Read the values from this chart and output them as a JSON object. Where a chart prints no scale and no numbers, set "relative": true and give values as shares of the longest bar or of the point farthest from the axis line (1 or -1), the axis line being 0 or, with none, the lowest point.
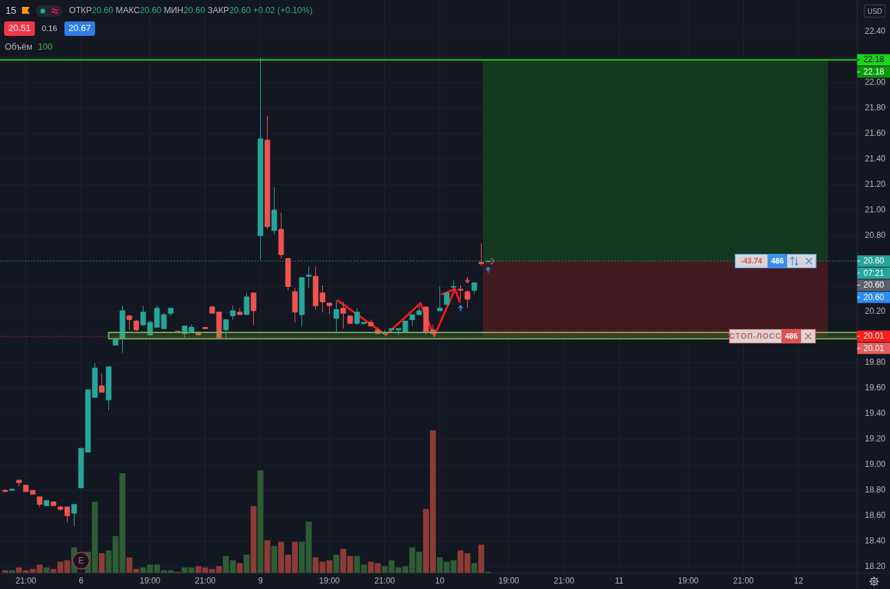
{
  "chart_data": [
    {
      "type": "candlestick",
      "title": "15",
      "subtitle": "ОТКР20.60 МАКС20.60 МИН20.60 ЗАКР20.60 +0.02 (+0.10%)",
      "categories": [
        null,
        null,
        null,
        "21:00",
        null,
        null,
        null,
        null,
        null,
        null,
        null,
        "6",
        null,
        null,
        null,
        null,
        null,
        null,
        null,
        null,
        null,
        "19:00",
        null,
        null,
        null,
        null,
        null,
        null,
        null,
        "21:00",
        null,
        null,
        null,
        null,
        null,
        null,
        null,
        "9",
        null,
        null,
        null,
        null,
        null,
        null,
        null,
        null,
        null,
        "19:00",
        null,
        null,
        null,
        null,
        null,
        null,
        null,
        "21:00",
        null,
        null,
        null,
        null,
        null,
        null,
        null,
        "10",
        null,
        null,
        null,
        null,
        null,
        null,
        null,
        null,
        null,
        "19:00",
        null,
        null,
        null,
        null,
        null,
        null,
        null,
        "21:00",
        null,
        null,
        null,
        null,
        null,
        null,
        null,
        "11",
        null,
        null,
        null,
        null,
        null,
        null,
        null,
        null,
        null,
        "19:00",
        null,
        null,
        null,
        null,
        null,
        null,
        null,
        "21:00",
        null,
        null,
        null,
        null,
        null,
        null,
        null,
        "12",
        null,
        null,
        null,
        null,
        null,
        null,
        null,
        null
      ],
      "ohlc": [
        [
          18.8,
          18.81,
          18.79,
          18.79
        ],
        [
          18.8,
          18.81,
          18.8,
          18.81
        ],
        [
          18.88,
          18.88,
          18.83,
          18.86
        ],
        [
          18.84,
          18.84,
          18.79,
          18.79
        ],
        [
          18.8,
          18.8,
          18.77,
          18.77
        ],
        [
          18.75,
          18.75,
          18.67,
          18.69
        ],
        [
          18.68,
          18.72,
          18.68,
          18.72
        ],
        [
          18.71,
          18.71,
          18.68,
          18.68
        ],
        [
          18.67,
          18.68,
          18.64,
          18.65
        ],
        [
          18.67,
          18.67,
          18.55,
          18.6
        ],
        [
          18.62,
          18.69,
          18.52,
          18.69
        ],
        [
          18.82,
          19.13,
          18.82,
          19.13
        ],
        [
          19.1,
          19.59,
          19.1,
          19.59
        ],
        [
          19.53,
          19.8,
          19.53,
          19.76
        ],
        [
          19.62,
          19.72,
          19.57,
          19.57
        ],
        [
          19.51,
          19.77,
          19.43,
          19.77
        ],
        [
          19.94,
          20.0,
          19.94,
          19.99
        ],
        [
          19.99,
          20.25,
          19.88,
          20.21
        ],
        [
          20.17,
          20.18,
          20.06,
          20.14
        ],
        [
          20.13,
          20.14,
          20.05,
          20.06
        ],
        [
          20.1,
          20.25,
          20.09,
          20.2
        ],
        [
          20.02,
          20.13,
          20.02,
          20.12
        ],
        [
          20.08,
          20.25,
          20.08,
          20.23
        ],
        [
          20.07,
          20.19,
          20.07,
          20.18
        ],
        [
          20.19,
          20.23,
          20.17,
          20.23
        ],
        [
          20.05,
          20.05,
          20.04,
          20.04
        ],
        [
          20.03,
          20.09,
          20.0,
          20.09
        ],
        [
          20.04,
          20.1,
          20.04,
          20.08
        ],
        [
          20.04,
          20.05,
          20.02,
          20.02
        ],
        [
          20.08,
          20.08,
          20.07,
          20.07
        ],
        [
          20.24,
          20.25,
          20.19,
          20.19
        ],
        [
          20.2,
          20.2,
          20.0,
          20.0
        ],
        [
          20.06,
          20.14,
          20.0,
          20.14
        ],
        [
          20.17,
          20.25,
          20.14,
          20.21
        ],
        [
          20.2,
          20.23,
          20.18,
          20.18
        ],
        [
          20.18,
          20.35,
          20.18,
          20.32
        ],
        [
          20.35,
          20.35,
          20.1,
          20.21
        ],
        [
          20.8,
          22.2,
          20.61,
          21.56
        ],
        [
          21.55,
          21.74,
          20.85,
          20.87
        ],
        [
          20.84,
          21.18,
          20.81,
          21.0
        ],
        [
          20.85,
          20.98,
          20.62,
          20.65
        ],
        [
          20.62,
          20.62,
          20.37,
          20.4
        ],
        [
          20.36,
          20.39,
          20.12,
          20.2
        ],
        [
          20.18,
          20.47,
          20.09,
          20.47
        ],
        [
          20.48,
          20.56,
          20.39,
          20.49
        ],
        [
          20.48,
          20.56,
          20.22,
          20.25
        ],
        [
          20.35,
          20.41,
          20.2,
          20.28
        ],
        [
          20.27,
          20.28,
          20.18,
          20.25
        ],
        [
          20.15,
          20.29,
          20.04,
          20.22
        ],
        [
          20.23,
          20.28,
          20.07,
          20.19
        ],
        [
          20.17,
          20.17,
          20.11,
          20.11
        ],
        [
          20.11,
          20.23,
          20.1,
          20.2
        ],
        [
          20.11,
          20.12,
          20.1,
          20.12
        ],
        [
          20.12,
          20.14,
          20.09,
          20.09
        ],
        [
          20.06,
          20.08,
          20.03,
          20.03
        ],
        [
          20.03,
          20.06,
          20.03,
          20.04
        ],
        [
          20.06,
          20.07,
          20.04,
          20.07
        ],
        [
          20.06,
          20.07,
          20.02,
          20.07
        ],
        [
          20.04,
          20.13,
          20.04,
          20.13
        ],
        [
          20.14,
          20.18,
          20.09,
          20.18
        ],
        [
          20.18,
          20.25,
          20.18,
          20.21
        ],
        [
          20.24,
          20.24,
          20.02,
          20.04
        ],
        [
          20.06,
          20.1,
          20.03,
          20.03
        ],
        [
          20.21,
          20.4,
          20.21,
          20.23
        ],
        [
          20.26,
          20.35,
          20.26,
          20.35
        ],
        [
          20.4,
          20.45,
          20.37,
          20.4
        ],
        [
          20.38,
          20.41,
          20.3,
          20.37
        ],
        [
          20.36,
          20.37,
          20.23,
          20.3
        ],
        [
          20.37,
          20.43,
          20.34,
          20.43
        ],
        [
          20.59,
          20.74,
          20.56,
          20.58
        ],
        [
          20.6,
          20.6,
          20.6,
          20.6
        ],
        null,
        null,
        null,
        null,
        null,
        null,
        null,
        null,
        null,
        null,
        null,
        null,
        null,
        null,
        null,
        null,
        null,
        null,
        null,
        null,
        null,
        null,
        null,
        null,
        null,
        null,
        null,
        null,
        null,
        null,
        null,
        null,
        null,
        null,
        null,
        null,
        null,
        null,
        null,
        null,
        null,
        null,
        null,
        null,
        null,
        null,
        null,
        null,
        null,
        null,
        null,
        null,
        null
      ],
      "colors": [
        "#ef5350",
        "#26a69a",
        "#ef5350",
        "#ef5350",
        "#ef5350",
        "#ef5350",
        "#26a69a",
        "#ef5350",
        "#ef5350",
        "#ef5350",
        "#26a69a",
        "#26a69a",
        "#26a69a",
        "#26a69a",
        "#ef5350",
        "#26a69a",
        "#26a69a",
        "#26a69a",
        "#ef5350",
        "#ef5350",
        "#26a69a",
        "#26a69a",
        "#26a69a",
        "#26a69a",
        "#26a69a",
        "#ef5350",
        "#26a69a",
        "#26a69a",
        "#ef5350",
        "#ef5350",
        "#ef5350",
        "#ef5350",
        "#26a69a",
        "#26a69a",
        "#ef5350",
        "#26a69a",
        "#ef5350",
        "#26a69a",
        "#ef5350",
        "#26a69a",
        "#ef5350",
        "#ef5350",
        "#ef5350",
        "#26a69a",
        "#26a69a",
        "#ef5350",
        "#ef5350",
        "#ef5350",
        "#26a69a",
        "#ef5350",
        "#ef5350",
        "#26a69a",
        "#26a69a",
        "#ef5350",
        "#ef5350",
        "#26a69a",
        "#26a69a",
        "#26a69a",
        "#26a69a",
        "#26a69a",
        "#26a69a",
        "#ef5350",
        "#ef5350",
        "#26a69a",
        "#26a69a",
        "#26a69a",
        "#ef5350",
        "#ef5350",
        "#26a69a",
        "#ef5350",
        "#26a69a",
        null,
        null,
        null,
        null,
        null,
        null,
        null,
        null,
        null,
        null,
        null,
        null,
        null,
        null,
        null,
        null,
        null,
        null,
        null,
        null,
        null,
        null,
        null,
        null,
        null,
        null,
        null,
        null,
        null,
        null,
        null,
        null,
        null,
        null,
        null,
        null,
        null,
        null,
        null,
        null,
        null,
        null,
        null,
        null,
        null,
        null,
        null,
        null,
        null,
        null,
        null,
        null,
        null
      ],
      "ylim": [
        18.15,
        22.65
      ],
      "yticks": [
        {
          "value": 18.2,
          "label": "18.20"
        },
        {
          "value": 18.4,
          "label": "18.40"
        },
        {
          "value": 18.6,
          "label": "18.60"
        },
        {
          "value": 18.8,
          "label": "18.80"
        },
        {
          "value": 19,
          "label": "19.00"
        },
        {
          "value": 19.2,
          "label": "19.20"
        },
        {
          "value": 19.4,
          "label": "19.40"
        },
        {
          "value": 19.6,
          "label": "19.60"
        },
        {
          "value": 19.8,
          "label": "19.80"
        },
        {
          "value": 20,
          "label": null
        },
        {
          "value": 20.2,
          "label": "20.20"
        },
        {
          "value": 20.4,
          "label": null
        },
        {
          "value": 20.6,
          "label": null
        },
        {
          "value": 20.8,
          "label": "20.80"
        },
        {
          "value": 21,
          "label": "21.00"
        },
        {
          "value": 21.2,
          "label": "21.20"
        },
        {
          "value": 21.4,
          "label": "21.40"
        },
        {
          "value": 21.6,
          "label": "21.60"
        },
        {
          "value": 21.8,
          "label": "21.80"
        },
        {
          "value": 22,
          "label": "22.00"
        },
        {
          "value": 22.2,
          "label": null
        },
        {
          "value": 22.4,
          "label": "22.40"
        }
      ],
      "grid": true,
      "ref_lines": [
        {
          "axis": "y",
          "value": 22.18,
          "label": "22.18",
          "color": "#1fd31f"
        },
        {
          "axis": "y",
          "value": 20.6,
          "label": "20.60",
          "color": "#26a69a",
          "line_style": "dotted"
        },
        {
          "axis": "y",
          "value": 20.01,
          "label": "20.01",
          "color": "#ff1e1e",
          "line_style": "dotted"
        }
      ],
      "bands": [
        {
          "axis": "y",
          "from": 20.6,
          "to": 22.18,
          "color": "#12391f"
        },
        {
          "axis": "y",
          "from": 20.6,
          "to": 20.01,
          "color": "#431a21"
        },
        {
          "axis": "y",
          "from": 19.99,
          "to": 20.04,
          "color": "#6aaf4c"
        }
      ],
      "annotations": [
        "20.51",
        "0.16",
        "20.67",
        "USD",
        {
          "text": "-43.74",
          "y": 20.6
        },
        {
          "text": "486",
          "y": 20.6
        },
        {
          "text": "СТОП-ЛОСС",
          "y": 20.01
        },
        {
          "text": "486",
          "y": 20.01
        },
        "22.18",
        "07:21",
        "20.60",
        "20.60",
        "20.01"
      ]
    },
    {
      "type": "bar",
      "relative": true,
      "title": "Объём",
      "categories": [
        null,
        null,
        null,
        null,
        null,
        null,
        null,
        null,
        null,
        null,
        null,
        null,
        null,
        null,
        null,
        null,
        null,
        null,
        null,
        null,
        null,
        null,
        null,
        null,
        null,
        null,
        null,
        null,
        null,
        null,
        null,
        null,
        null,
        null,
        null,
        null,
        null,
        null,
        null,
        null,
        null,
        null,
        null,
        null,
        null,
        null,
        null,
        null,
        null,
        null,
        null,
        null,
        null,
        null,
        null,
        null,
        null,
        null,
        null,
        null,
        null,
        null,
        null,
        null,
        null,
        null,
        null,
        null,
        null,
        null,
        null,
        null,
        null,
        null,
        null,
        null,
        null,
        null,
        null,
        null,
        null,
        null,
        null,
        null,
        null,
        null,
        null,
        null,
        null,
        null,
        null,
        null,
        null,
        null,
        null,
        null,
        null,
        null,
        null,
        null,
        null,
        null,
        null,
        null,
        null,
        null,
        null,
        null,
        null,
        null,
        null,
        null,
        null,
        null,
        null,
        null,
        null,
        null,
        null,
        null,
        null,
        null,
        null,
        null
      ],
      "values": [
        0.02,
        0.02,
        0.04,
        0.02,
        0.03,
        0.06,
        0.04,
        0.03,
        0.08,
        0.09,
        0.18,
        null,
        0.15,
        0.5,
        0.14,
        0.16,
        0.26,
        0.7,
        0.11,
        0.03,
        0.04,
        0.06,
        0.06,
        0.02,
        0.02,
        0.01,
        0.04,
        0.04,
        0.05,
        0.04,
        0.03,
        0.05,
        0.12,
        0.09,
        0.07,
        0.13,
        0.47,
        0.72,
        0.23,
        0.19,
        0.22,
        0.13,
        0.22,
        0.22,
        0.36,
        0.11,
        0.08,
        0.09,
        0.13,
        0.17,
        0.12,
        0.12,
        0.06,
        0.08,
        0.07,
        0.05,
        0.09,
        0.04,
        0.05,
        0.18,
        0.15,
        0.45,
        1,
        0.11,
        0.08,
        0.09,
        0.16,
        0.14,
        0.07,
        0.2,
        0.01,
        null,
        null,
        null,
        null,
        null,
        null,
        null,
        null,
        null,
        null,
        null,
        null,
        null,
        null,
        null,
        null,
        null,
        null,
        null,
        null,
        null,
        null,
        null,
        null,
        null,
        null,
        null,
        null,
        null,
        null,
        null,
        null,
        null,
        null,
        null,
        null,
        null,
        null,
        null,
        null,
        null,
        null,
        null,
        null,
        null,
        null,
        null,
        null,
        null,
        null,
        null,
        null,
        null
      ],
      "colors": [
        "#8c3b36",
        "#2d5c35",
        "#8c3b36",
        "#8c3b36",
        "#8c3b36",
        "#8c3b36",
        "#2d5c35",
        "#8c3b36",
        "#8c3b36",
        "#8c3b36",
        "#2d5c35",
        null,
        "#2d5c35",
        "#2d5c35",
        "#8c3b36",
        "#2d5c35",
        "#2d5c35",
        "#2d5c35",
        "#8c3b36",
        "#8c3b36",
        "#2d5c35",
        "#2d5c35",
        "#2d5c35",
        "#2d5c35",
        "#2d5c35",
        "#8c3b36",
        "#2d5c35",
        "#2d5c35",
        "#8c3b36",
        "#8c3b36",
        "#8c3b36",
        "#8c3b36",
        "#2d5c35",
        "#2d5c35",
        "#8c3b36",
        "#2d5c35",
        "#8c3b36",
        "#2d5c35",
        "#8c3b36",
        "#2d5c35",
        "#8c3b36",
        "#8c3b36",
        "#8c3b36",
        "#2d5c35",
        "#2d5c35",
        "#8c3b36",
        "#8c3b36",
        "#8c3b36",
        "#2d5c35",
        "#8c3b36",
        "#8c3b36",
        "#2d5c35",
        "#2d5c35",
        "#8c3b36",
        "#8c3b36",
        "#2d5c35",
        "#2d5c35",
        "#2d5c35",
        "#2d5c35",
        "#2d5c35",
        "#2d5c35",
        "#8c3b36",
        "#8c3b36",
        "#2d5c35",
        "#2d5c35",
        "#2d5c35",
        "#8c3b36",
        "#8c3b36",
        "#2d5c35",
        "#8c3b36",
        "#2d5c35",
        null,
        null,
        null,
        null,
        null,
        null,
        null,
        null,
        null,
        null,
        null,
        null,
        null,
        null,
        null,
        null,
        null,
        null,
        null,
        null,
        null,
        null,
        null,
        null,
        null,
        null,
        null,
        null,
        null,
        null,
        null,
        null,
        null,
        null,
        null,
        null,
        null,
        null,
        null,
        null,
        null,
        null,
        null,
        null,
        null,
        null,
        null,
        null,
        null,
        null,
        null,
        null,
        null
      ],
      "annotations": [
        "100",
        "E"
      ]
    }
  ]
}
